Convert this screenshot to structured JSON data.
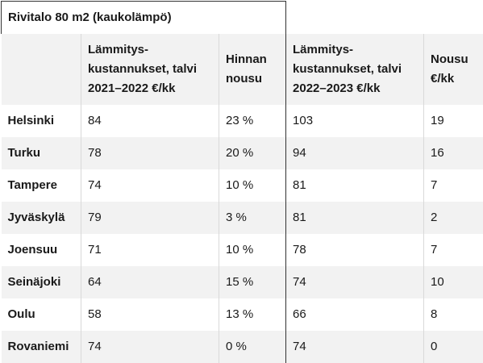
{
  "table": {
    "title": "Rivitalo 80 m2 (kaukolämpö)",
    "headers": [
      "",
      [
        "Lämmitys-",
        "kustannukset, talvi",
        "2021–2022 €/kk"
      ],
      [
        "Hinnan",
        "nousu"
      ],
      [
        "Lämmitys-",
        "kustannukset, talvi",
        "2022–2023 €/kk"
      ],
      [
        "Nousu",
        "€/kk"
      ]
    ],
    "rows": [
      [
        "Helsinki",
        "84",
        "23 %",
        "103",
        "19"
      ],
      [
        "Turku",
        "78",
        "20 %",
        "94",
        "16"
      ],
      [
        "Tampere",
        "74",
        "10 %",
        "81",
        "7"
      ],
      [
        "Jyväskylä",
        "79",
        "3 %",
        "81",
        "2"
      ],
      [
        "Joensuu",
        "71",
        "10 %",
        "78",
        "7"
      ],
      [
        "Seinäjoki",
        "64",
        "15 %",
        "74",
        "10"
      ],
      [
        "Oulu",
        "58",
        "13 %",
        "66",
        "8"
      ],
      [
        "Rovaniemi",
        "74",
        "0 %",
        "74",
        "0"
      ]
    ]
  },
  "colors": {
    "stripe": "#f2f2f2",
    "border": "#333333",
    "text": "#1a1a1a"
  }
}
